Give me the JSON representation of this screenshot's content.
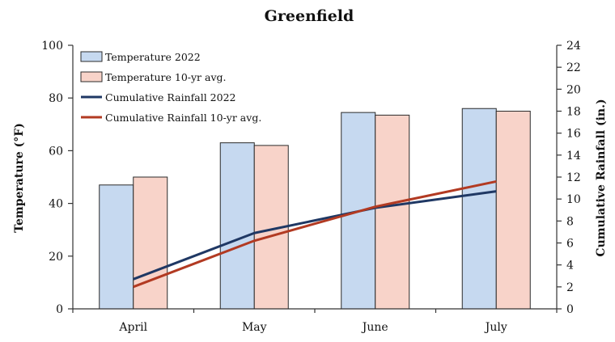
{
  "chart_data": {
    "type": "bar",
    "title": "Greenfield",
    "categories": [
      "April",
      "May",
      "June",
      "July"
    ],
    "ylabel": "Temperature (°F)",
    "ylim": [
      0,
      100
    ],
    "yticks": [
      "0",
      "20",
      "40",
      "60",
      "80",
      "100"
    ],
    "y2label": "Cumulative Rainfall (in.)",
    "y2lim": [
      0,
      24
    ],
    "y2ticks": [
      "0",
      "2",
      "4",
      "6",
      "8",
      "10",
      "12",
      "14",
      "16",
      "18",
      "20",
      "22",
      "24"
    ],
    "grid": false,
    "legend_position": "top-left",
    "series": [
      {
        "name": "Temperature 2022",
        "kind": "bar",
        "axis": "left",
        "color": "#c6d9f0",
        "values": [
          47,
          63,
          74.5,
          76
        ]
      },
      {
        "name": "Temperature 10-yr avg.",
        "kind": "bar",
        "axis": "left",
        "color": "#f8d3c9",
        "values": [
          50,
          62,
          73.5,
          75
        ]
      },
      {
        "name": "Cumulative Rainfall 2022",
        "kind": "line",
        "axis": "right",
        "color": "#1f3864",
        "values": [
          2.7,
          6.9,
          9.2,
          10.7
        ]
      },
      {
        "name": "Cumulative Rainfall 10-yr avg.",
        "kind": "line",
        "axis": "right",
        "color": "#b23a22",
        "values": [
          2.0,
          6.2,
          9.3,
          11.6
        ]
      }
    ]
  }
}
